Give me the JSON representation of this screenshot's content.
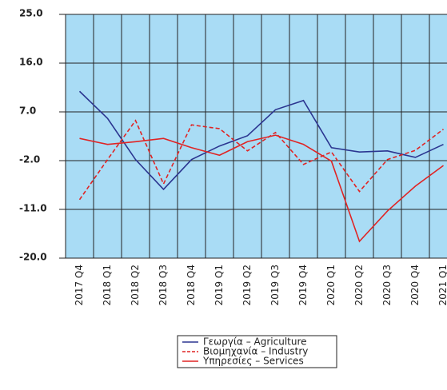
{
  "chart_data": {
    "type": "line",
    "categories": [
      "2017 Q4",
      "2018 Q1",
      "2018 Q2",
      "2018 Q3",
      "2018 Q4",
      "2019 Q1",
      "2019 Q2",
      "2019 Q3",
      "2019 Q4",
      "2020 Q1",
      "2020 Q2",
      "2020 Q3",
      "2020 Q4",
      "2021 Q1"
    ],
    "series": [
      {
        "name": "Γεωργία – Agriculture",
        "color": "#2b3590",
        "style": "solid",
        "values": [
          10.8,
          5.8,
          -1.8,
          -7.3,
          -1.8,
          0.7,
          2.6,
          7.4,
          9.1,
          0.4,
          -0.4,
          -0.2,
          -1.4,
          1.0
        ]
      },
      {
        "name": "Βιομηχανία – Industry",
        "color": "#e02424",
        "style": "dashed",
        "values": [
          -9.2,
          -1.8,
          5.4,
          -6.3,
          4.6,
          3.9,
          -0.2,
          3.2,
          -2.7,
          -0.4,
          -7.7,
          -1.8,
          -0.1,
          3.8
        ]
      },
      {
        "name": "Υπηρεσίες – Services",
        "color": "#e02424",
        "style": "solid",
        "values": [
          2.1,
          1.0,
          1.5,
          2.1,
          0.4,
          -1.0,
          1.5,
          2.7,
          1.0,
          -2.1,
          -16.9,
          -11.3,
          -6.7,
          -2.9
        ]
      }
    ],
    "ylim": [
      -20,
      25
    ],
    "yticks": [
      {
        "value": -20,
        "label": "-20.0"
      },
      {
        "value": -11,
        "label": "-11.0"
      },
      {
        "value": -2,
        "label": "-2.0"
      },
      {
        "value": 7,
        "label": "7.0"
      },
      {
        "value": 16,
        "label": "16.0"
      },
      {
        "value": 25,
        "label": "25.0"
      }
    ],
    "grid": true,
    "background": "#a9dcf5",
    "legend": "bottom"
  }
}
